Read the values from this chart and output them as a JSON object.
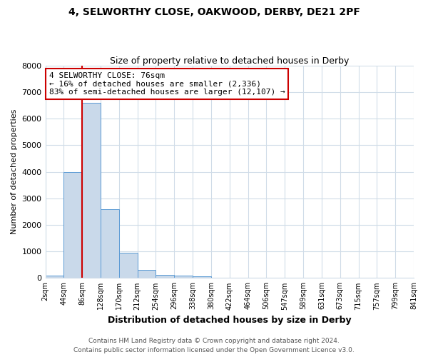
{
  "title1": "4, SELWORTHY CLOSE, OAKWOOD, DERBY, DE21 2PF",
  "title2": "Size of property relative to detached houses in Derby",
  "xlabel": "Distribution of detached houses by size in Derby",
  "ylabel": "Number of detached properties",
  "bin_labels": [
    "2sqm",
    "44sqm",
    "86sqm",
    "128sqm",
    "170sqm",
    "212sqm",
    "254sqm",
    "296sqm",
    "338sqm",
    "380sqm",
    "422sqm",
    "464sqm",
    "506sqm",
    "547sqm",
    "589sqm",
    "631sqm",
    "673sqm",
    "715sqm",
    "757sqm",
    "799sqm",
    "841sqm"
  ],
  "bar_heights": [
    80,
    4000,
    6600,
    2600,
    950,
    300,
    120,
    80,
    60,
    0,
    0,
    0,
    0,
    0,
    0,
    0,
    0,
    0,
    0,
    0
  ],
  "bar_color": "#c9d9ea",
  "bar_edge_color": "#5b9bd5",
  "red_line_x": 2.0,
  "annotation_text": "4 SELWORTHY CLOSE: 76sqm\n← 16% of detached houses are smaller (2,336)\n83% of semi-detached houses are larger (12,107) →",
  "annotation_box_color": "#ffffff",
  "annotation_border_color": "#cc0000",
  "ylim": [
    0,
    8000
  ],
  "yticks": [
    0,
    1000,
    2000,
    3000,
    4000,
    5000,
    6000,
    7000,
    8000
  ],
  "footer1": "Contains HM Land Registry data © Crown copyright and database right 2024.",
  "footer2": "Contains public sector information licensed under the Open Government Licence v3.0.",
  "red_line_color": "#cc0000",
  "background_color": "#ffffff",
  "grid_color": "#d0dce8"
}
